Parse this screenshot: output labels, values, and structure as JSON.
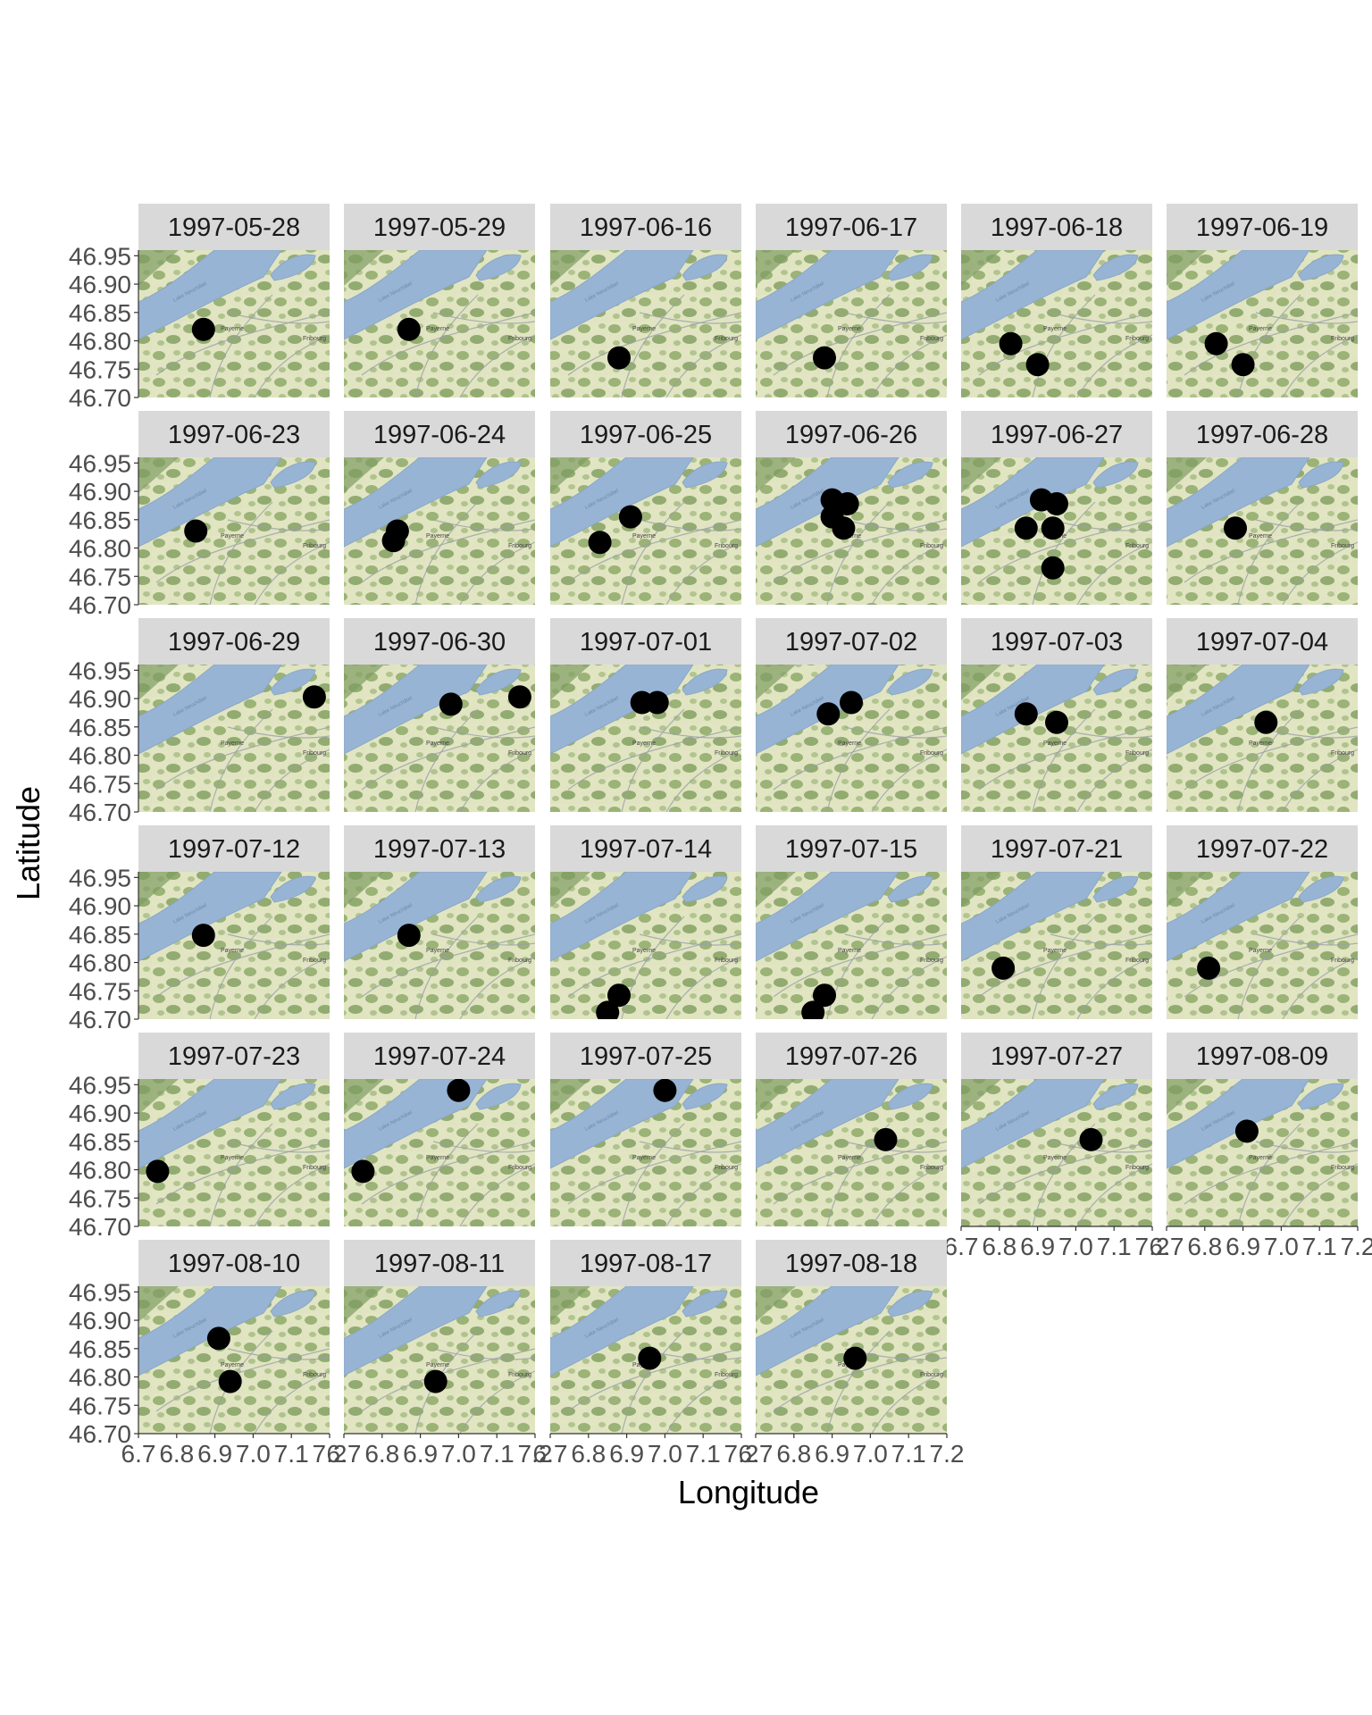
{
  "chart_data": {
    "type": "scatter",
    "title": "",
    "xlabel": "Longitude",
    "ylabel": "Latitude",
    "xlim": [
      6.7,
      7.2
    ],
    "ylim": [
      46.7,
      46.96
    ],
    "x_tick_values": [
      6.7,
      6.8,
      6.9,
      7.0,
      7.1,
      7.2
    ],
    "x_tick_labels": [
      "6.7",
      "6.8",
      "6.9",
      "7.0",
      "7.1",
      "7.2"
    ],
    "y_tick_values": [
      46.7,
      46.75,
      46.8,
      46.85,
      46.9,
      46.95
    ],
    "y_tick_labels": [
      "46.70",
      "46.75",
      "46.80",
      "46.85",
      "46.90",
      "46.95"
    ],
    "facet_by": "date",
    "facet_ncol": 6,
    "background": "map tiles (Lake Neuchâtel region with Payerne and Fribourg)",
    "map_labels": {
      "lake": "Lake Neuchâtel",
      "town1": "Payerne",
      "town2": "Fribourg"
    },
    "facets": [
      {
        "date": "1997-05-28",
        "points": [
          {
            "x": 6.87,
            "y": 46.82
          }
        ]
      },
      {
        "date": "1997-05-29",
        "points": [
          {
            "x": 6.87,
            "y": 46.82
          }
        ]
      },
      {
        "date": "1997-06-16",
        "points": [
          {
            "x": 6.88,
            "y": 46.77
          }
        ]
      },
      {
        "date": "1997-06-17",
        "points": [
          {
            "x": 6.88,
            "y": 46.77
          }
        ]
      },
      {
        "date": "1997-06-18",
        "points": [
          {
            "x": 6.83,
            "y": 46.795
          },
          {
            "x": 6.9,
            "y": 46.758
          }
        ]
      },
      {
        "date": "1997-06-19",
        "points": [
          {
            "x": 6.83,
            "y": 46.795
          },
          {
            "x": 6.9,
            "y": 46.758
          }
        ]
      },
      {
        "date": "1997-06-23",
        "points": [
          {
            "x": 6.85,
            "y": 46.83
          }
        ]
      },
      {
        "date": "1997-06-24",
        "points": [
          {
            "x": 6.83,
            "y": 46.813
          },
          {
            "x": 6.84,
            "y": 46.83
          }
        ]
      },
      {
        "date": "1997-06-25",
        "points": [
          {
            "x": 6.83,
            "y": 46.81
          },
          {
            "x": 6.91,
            "y": 46.855
          }
        ]
      },
      {
        "date": "1997-06-26",
        "points": [
          {
            "x": 6.9,
            "y": 46.885
          },
          {
            "x": 6.94,
            "y": 46.878
          },
          {
            "x": 6.9,
            "y": 46.855
          },
          {
            "x": 6.93,
            "y": 46.835
          }
        ]
      },
      {
        "date": "1997-06-27",
        "points": [
          {
            "x": 6.87,
            "y": 46.835
          },
          {
            "x": 6.91,
            "y": 46.885
          },
          {
            "x": 6.95,
            "y": 46.878
          },
          {
            "x": 6.94,
            "y": 46.835
          },
          {
            "x": 6.94,
            "y": 46.765
          }
        ]
      },
      {
        "date": "1997-06-28",
        "points": [
          {
            "x": 6.88,
            "y": 46.835
          }
        ]
      },
      {
        "date": "1997-06-29",
        "points": [
          {
            "x": 7.16,
            "y": 46.903
          }
        ]
      },
      {
        "date": "1997-06-30",
        "points": [
          {
            "x": 6.98,
            "y": 46.89
          },
          {
            "x": 7.16,
            "y": 46.903
          }
        ]
      },
      {
        "date": "1997-07-01",
        "points": [
          {
            "x": 6.94,
            "y": 46.893
          },
          {
            "x": 6.98,
            "y": 46.893
          }
        ]
      },
      {
        "date": "1997-07-02",
        "points": [
          {
            "x": 6.89,
            "y": 46.873
          },
          {
            "x": 6.95,
            "y": 46.893
          }
        ]
      },
      {
        "date": "1997-07-03",
        "points": [
          {
            "x": 6.87,
            "y": 46.873
          },
          {
            "x": 6.95,
            "y": 46.858
          }
        ]
      },
      {
        "date": "1997-07-04",
        "points": [
          {
            "x": 6.96,
            "y": 46.858
          }
        ]
      },
      {
        "date": "1997-07-12",
        "points": [
          {
            "x": 6.87,
            "y": 46.848
          }
        ]
      },
      {
        "date": "1997-07-13",
        "points": [
          {
            "x": 6.87,
            "y": 46.848
          }
        ]
      },
      {
        "date": "1997-07-14",
        "points": [
          {
            "x": 6.85,
            "y": 46.712
          },
          {
            "x": 6.88,
            "y": 46.742
          }
        ]
      },
      {
        "date": "1997-07-15",
        "points": [
          {
            "x": 6.85,
            "y": 46.712
          },
          {
            "x": 6.88,
            "y": 46.742
          }
        ]
      },
      {
        "date": "1997-07-21",
        "points": [
          {
            "x": 6.81,
            "y": 46.79
          }
        ]
      },
      {
        "date": "1997-07-22",
        "points": [
          {
            "x": 6.81,
            "y": 46.79
          }
        ]
      },
      {
        "date": "1997-07-23",
        "points": [
          {
            "x": 6.75,
            "y": 46.797
          }
        ]
      },
      {
        "date": "1997-07-24",
        "points": [
          {
            "x": 6.75,
            "y": 46.797
          },
          {
            "x": 7.0,
            "y": 46.94
          }
        ]
      },
      {
        "date": "1997-07-25",
        "points": [
          {
            "x": 7.0,
            "y": 46.94
          }
        ]
      },
      {
        "date": "1997-07-26",
        "points": [
          {
            "x": 7.04,
            "y": 46.853
          }
        ]
      },
      {
        "date": "1997-07-27",
        "points": [
          {
            "x": 7.04,
            "y": 46.853
          }
        ]
      },
      {
        "date": "1997-08-09",
        "points": [
          {
            "x": 6.91,
            "y": 46.868
          }
        ]
      },
      {
        "date": "1997-08-10",
        "points": [
          {
            "x": 6.91,
            "y": 46.868
          },
          {
            "x": 6.94,
            "y": 46.792
          }
        ]
      },
      {
        "date": "1997-08-11",
        "points": [
          {
            "x": 6.94,
            "y": 46.792
          }
        ]
      },
      {
        "date": "1997-08-17",
        "points": [
          {
            "x": 6.96,
            "y": 46.833
          }
        ]
      },
      {
        "date": "1997-08-18",
        "points": [
          {
            "x": 6.96,
            "y": 46.833
          }
        ]
      }
    ],
    "point_color": "#000000",
    "strip_color": "#d9d9d9",
    "grid": false,
    "legend": "none"
  }
}
